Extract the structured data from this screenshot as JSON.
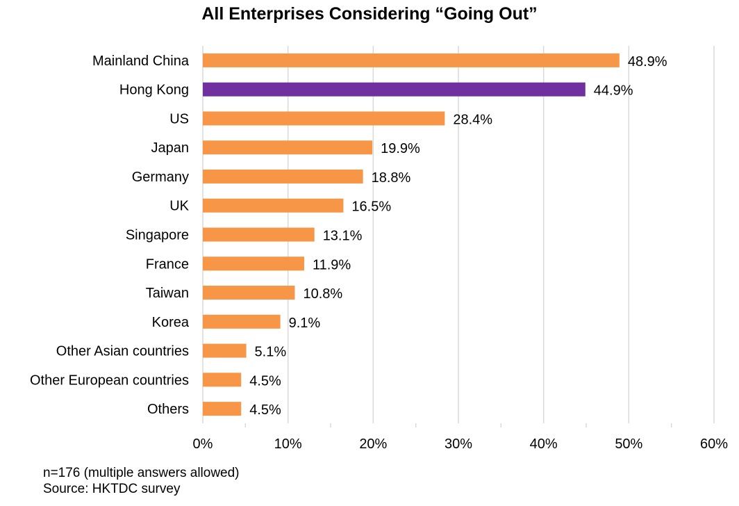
{
  "chart_data": {
    "type": "bar",
    "orientation": "horizontal",
    "title": "All Enterprises Considering “Going Out”",
    "categories": [
      "Mainland China",
      "Hong Kong",
      "US",
      "Japan",
      "Germany",
      "UK",
      "Singapore",
      "France",
      "Taiwan",
      "Korea",
      "Other Asian countries",
      "Other European countries",
      "Others"
    ],
    "values": [
      48.9,
      44.9,
      28.4,
      19.9,
      18.8,
      16.5,
      13.1,
      11.9,
      10.8,
      9.1,
      5.1,
      4.5,
      4.5
    ],
    "value_labels": [
      "48.9%",
      "44.9%",
      "28.4%",
      "19.9%",
      "18.8%",
      "16.5%",
      "13.1%",
      "11.9%",
      "10.8%",
      "9.1%",
      "5.1%",
      "4.5%",
      "4.5%"
    ],
    "xlim": [
      0,
      60
    ],
    "x_ticks": [
      "0%",
      "10%",
      "20%",
      "30%",
      "40%",
      "50%",
      "60%"
    ],
    "grid": true,
    "colors": {
      "default": "#F79646",
      "highlight": "#7030A0"
    },
    "highlight_category": "Hong Kong"
  },
  "notes": {
    "sample": "n=176 (multiple  answers allowed)",
    "source": "Source: HKTDC survey"
  }
}
